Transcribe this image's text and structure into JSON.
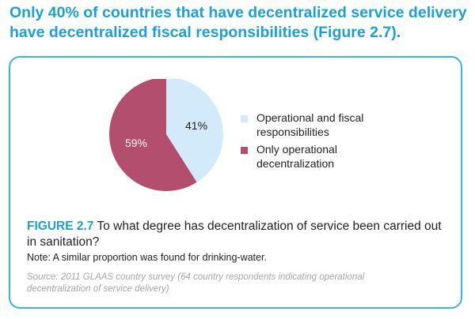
{
  "headline": {
    "line1": "Only 40% of countries that have decentralized service delivery",
    "line2": "have decentralized fiscal responsibilities (Figure 2.7)."
  },
  "figure": {
    "label": "FIGURE 2.7",
    "caption": "To what degree has decentralization of service been carried out in sanitation?",
    "note": "Note: A similar proportion was found for drinking-water.",
    "source": "Source: 2011 GLAAS country survey (64 country respondents indicating operational decentralization of service delivery)"
  },
  "chart_data": {
    "type": "pie",
    "categories": [
      "Operational and fiscal responsibilities",
      "Only operational decentralization"
    ],
    "values": [
      41,
      59
    ],
    "data_labels": [
      "41%",
      "59%"
    ],
    "colors": [
      "#d3eafa",
      "#b34e6e"
    ],
    "legend_placement": "right"
  }
}
